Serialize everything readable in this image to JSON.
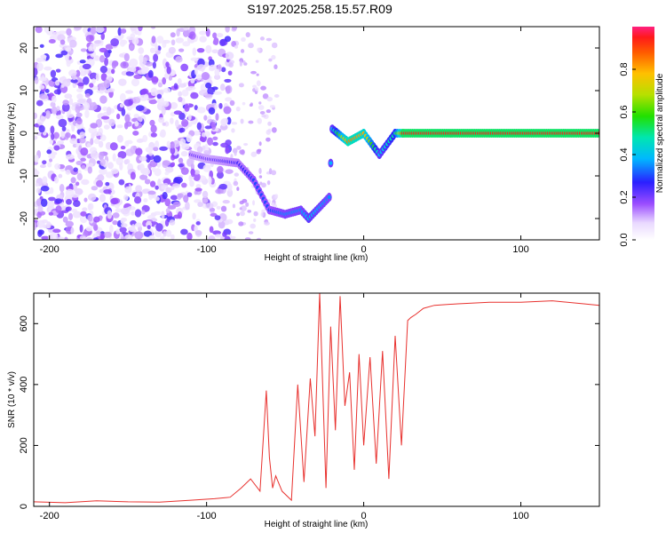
{
  "title": "S197.2025.258.15.57.R09",
  "chart_data": [
    {
      "type": "heatmap",
      "name": "spectrogram",
      "xlabel": "Height of straight line (km)",
      "ylabel": "Frequency (Hz)",
      "xlim": [
        -210,
        150
      ],
      "ylim": [
        -25,
        25
      ],
      "xticks": [
        -200,
        -100,
        0,
        100
      ],
      "yticks": [
        -20,
        -10,
        0,
        10,
        20
      ],
      "colorbar": {
        "label": "Normalized spectral amplitude",
        "range": [
          0,
          1
        ],
        "ticks": [
          "0.0",
          "0.2",
          "0.4",
          "0.6",
          "0.8"
        ],
        "tick_values": [
          0,
          0.2,
          0.4,
          0.6,
          0.8
        ]
      },
      "noise_region": {
        "x_range": [
          -210,
          -85
        ],
        "freq_range": [
          -25,
          25
        ],
        "amplitude_range": [
          0.05,
          0.25
        ]
      },
      "signal_track": [
        {
          "x": -110,
          "freq": -5,
          "amplitude": 0.2
        },
        {
          "x": -100,
          "freq": -6,
          "amplitude": 0.2
        },
        {
          "x": -80,
          "freq": -7,
          "amplitude": 0.25
        },
        {
          "x": -70,
          "freq": -11,
          "amplitude": 0.3
        },
        {
          "x": -60,
          "freq": -18,
          "amplitude": 0.3
        },
        {
          "x": -50,
          "freq": -19,
          "amplitude": 0.35
        },
        {
          "x": -40,
          "freq": -18,
          "amplitude": 0.35
        },
        {
          "x": -35,
          "freq": -20,
          "amplitude": 0.4
        },
        {
          "x": -22,
          "freq": -15,
          "amplitude": 0.35
        },
        {
          "x": -20,
          "freq": 1,
          "amplitude": 0.4
        },
        {
          "x": -10,
          "freq": -2,
          "amplitude": 0.85
        },
        {
          "x": 0,
          "freq": 0,
          "amplitude": 0.8
        },
        {
          "x": 10,
          "freq": -5,
          "amplitude": 0.4
        },
        {
          "x": 20,
          "freq": 0,
          "amplitude": 0.5
        },
        {
          "x": 25,
          "freq": 0,
          "amplitude": 0.95
        },
        {
          "x": 150,
          "freq": 0,
          "amplitude": 0.95
        }
      ]
    },
    {
      "type": "line",
      "name": "snr",
      "xlabel": "Height of straight line (km)",
      "ylabel": "SNR (10 * v/v)",
      "xlim": [
        -210,
        150
      ],
      "ylim": [
        0,
        700
      ],
      "xticks": [
        -200,
        -100,
        0,
        100
      ],
      "yticks": [
        0,
        200,
        400,
        600
      ],
      "color": "#e8312e",
      "series": [
        {
          "name": "SNR",
          "x": [
            -210,
            -190,
            -170,
            -150,
            -130,
            -110,
            -95,
            -85,
            -78,
            -72,
            -66,
            -62,
            -60,
            -58,
            -56,
            -52,
            -46,
            -42,
            -38,
            -34,
            -31,
            -28,
            -24,
            -21,
            -18,
            -15,
            -12,
            -9,
            -6,
            -3,
            0,
            4,
            8,
            12,
            16,
            20,
            24,
            28,
            30,
            33,
            38,
            45,
            60,
            80,
            100,
            120,
            140,
            150
          ],
          "y": [
            15,
            12,
            18,
            15,
            14,
            20,
            25,
            30,
            60,
            90,
            50,
            380,
            160,
            60,
            100,
            50,
            20,
            400,
            80,
            420,
            230,
            700,
            60,
            590,
            250,
            690,
            330,
            440,
            120,
            500,
            200,
            490,
            140,
            510,
            90,
            560,
            200,
            610,
            620,
            630,
            650,
            660,
            665,
            670,
            670,
            675,
            665,
            660
          ]
        }
      ]
    }
  ]
}
